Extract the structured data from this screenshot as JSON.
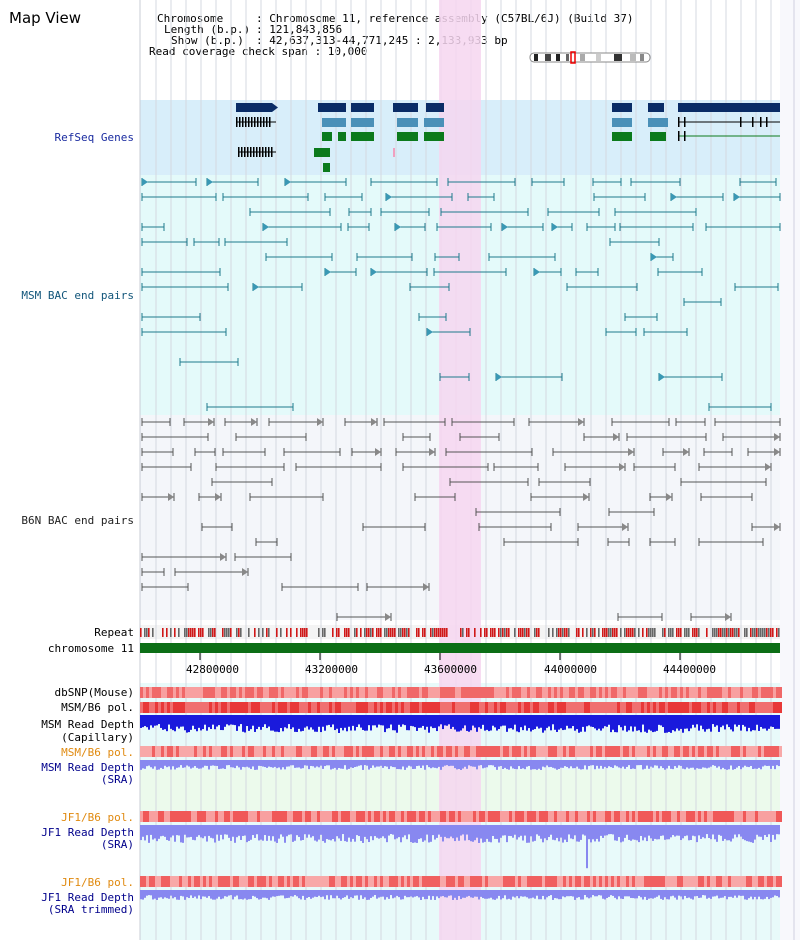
{
  "title": "Map View",
  "info": {
    "chromosome_key": "Chromosome",
    "chromosome_val": ": Chromosome 11, reference assembly (C57BL/6J) (Build 37)",
    "length_key": "Length (b.p.)",
    "length_val": ": 121,843,856",
    "show_key": "Show (b.p.)",
    "show_val": ": 42,637,313-44,771,245 : 2,133,933 bp",
    "coverage": "Read coverage check span : 10,000"
  },
  "tracks": {
    "refseq": "RefSeq Genes",
    "msm_bac": "MSM BAC end pairs",
    "b6n_bac": "B6N BAC end pairs",
    "repeat": "Repeat",
    "chromosome": "chromosome 11",
    "dbsnp": "dbSNP(Mouse)",
    "msm_b6_pol": "MSM/B6 pol.",
    "msm_read_depth": "MSM Read Depth",
    "capillary": "(Capillary)",
    "msm_b6_pol_sra": "MSM/B6 pol.",
    "msm_read_depth_sra": "MSM Read Depth",
    "sra": "(SRA)",
    "jf1_b6_pol": "JF1/B6 pol.",
    "jf1_read_depth": "JF1 Read Depth",
    "jf1_sra": "(SRA)",
    "jf1_b6_pol2": "JF1/B6 pol.",
    "jf1_read_depth2": "JF1 Read Depth",
    "jf1_sra_trimmed": "(SRA trimmed)"
  },
  "axis_ticks": [
    "42800000",
    "43200000",
    "43600000",
    "44000000",
    "44400000"
  ],
  "colors": {
    "refseq_bg": "#d8eefa",
    "msm_bg": "#e4fafa",
    "b6n_bg": "#f4f6fa",
    "highlight": "#f6d6f0",
    "gene_dark": "#0a2c66",
    "gene_light": "#4a90b8",
    "gene_green": "#0b7a1c",
    "chrom_green": "#0c6e16",
    "repeat_red": "#d01818",
    "pol_red": "#f06060",
    "depth_blue": "#1a1adc",
    "depth_light": "#8888f0"
  }
}
